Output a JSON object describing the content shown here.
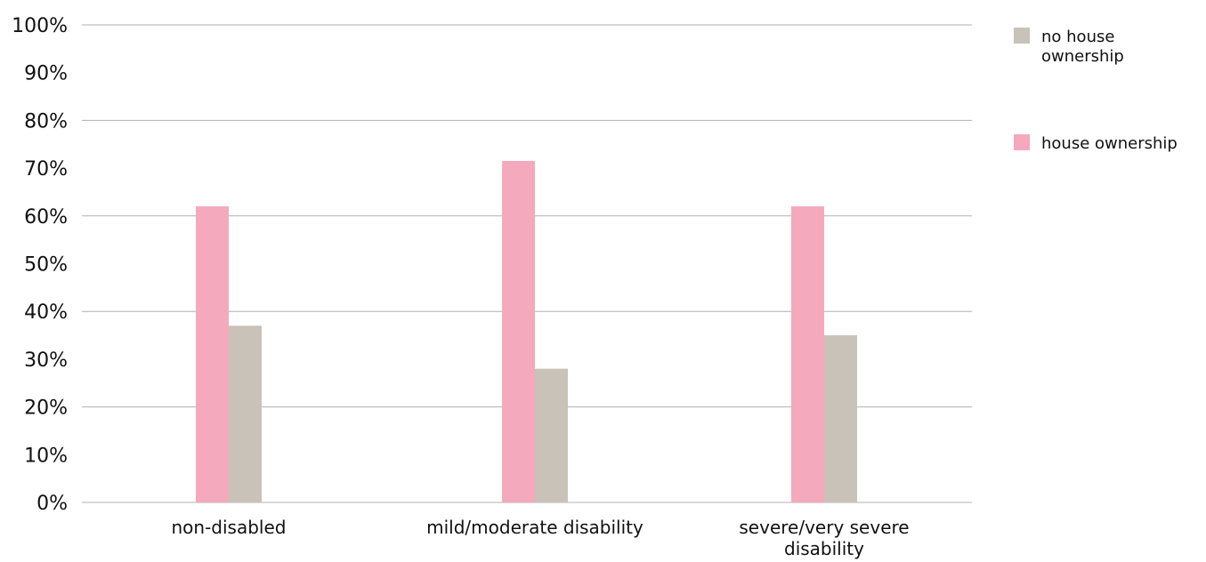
{
  "chart_data": {
    "type": "bar",
    "categories": [
      "non-disabled",
      "mild/moderate disability",
      "severe/very severe disability"
    ],
    "series": [
      {
        "name": "house ownership",
        "values": [
          62,
          71.5,
          62
        ],
        "color": "#f5a9bc"
      },
      {
        "name": "no house ownership",
        "values": [
          37,
          28,
          35
        ],
        "color": "#c9c2b8"
      }
    ],
    "ylim": [
      0,
      100
    ],
    "y_ticks": [
      "0%",
      "10%",
      "20%",
      "30%",
      "40%",
      "50%",
      "60%",
      "70%",
      "80%",
      "90%",
      "100%"
    ],
    "legend_entries": [
      "no house ownership",
      "house ownership"
    ],
    "grid": "horizontal",
    "legend_position": "right"
  }
}
